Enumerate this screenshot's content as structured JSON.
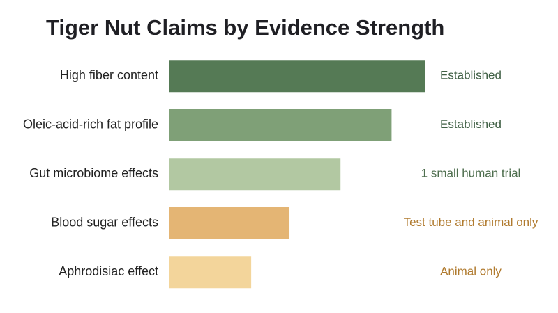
{
  "chart_data": {
    "type": "bar",
    "orientation": "horizontal",
    "title": "Tiger Nut Claims by Evidence Strength",
    "categories": [
      "High fiber content",
      "Oleic-acid-rich fat profile",
      "Gut microbiome effects",
      "Blood sugar effects",
      "Aphrodisiac effect"
    ],
    "values": [
      100,
      87,
      67,
      47,
      32
    ],
    "colors": [
      "#557a55",
      "#7fa077",
      "#b2c8a2",
      "#e4b574",
      "#f3d59b"
    ],
    "evidence": [
      "Established",
      "Established",
      "1 small human trial",
      "Test tube and animal only",
      "Animal only"
    ],
    "evidence_colors": [
      "#3f5f44",
      "#3f5f44",
      "#4e6e4e",
      "#b07a2e",
      "#b07a2e"
    ],
    "xlim": [
      0,
      100
    ]
  }
}
